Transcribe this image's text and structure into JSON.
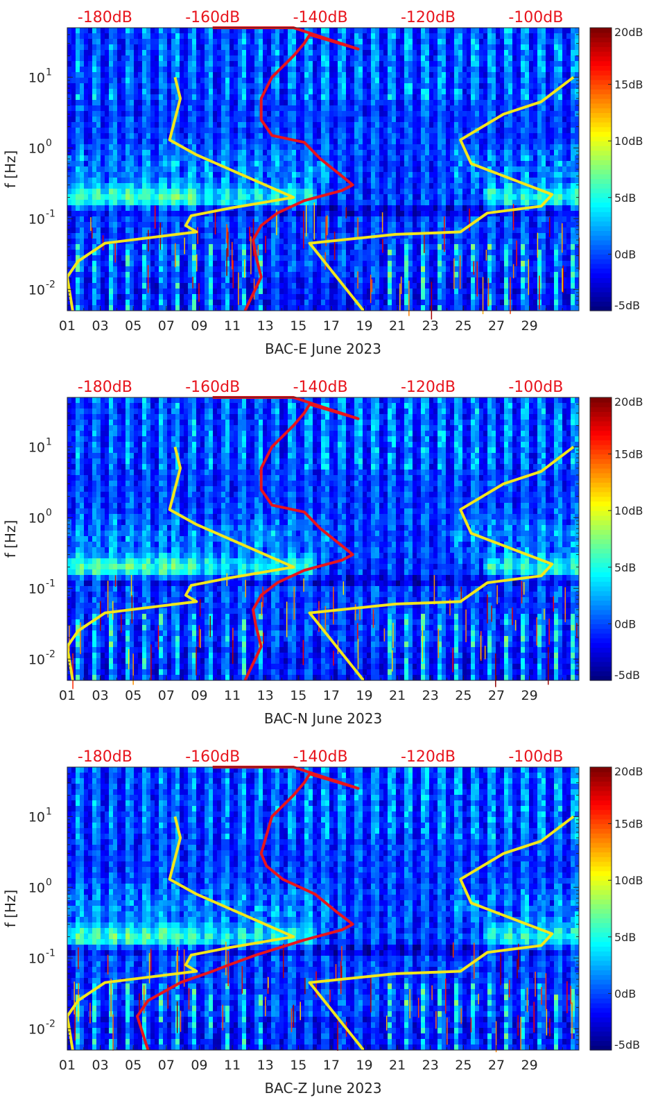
{
  "figure": {
    "colors": {
      "psd_curve": "#e8141c",
      "noise_model": "#f2e61c",
      "top_axis_text": "#e8141c"
    },
    "colormap": "jet"
  },
  "chart_data": [
    {
      "type": "heatmap",
      "title": "",
      "xlabel": "BAC-E June 2023",
      "ylabel": "f [Hz]",
      "yscale": "log",
      "ylim": [
        0.005,
        50
      ],
      "xlim": [
        1,
        32
      ],
      "x_ticks": [
        "01",
        "03",
        "05",
        "07",
        "09",
        "11",
        "13",
        "15",
        "17",
        "19",
        "21",
        "23",
        "25",
        "27",
        "29"
      ],
      "y_ticks": [
        {
          "base": "10",
          "exp": "-2",
          "value": 0.01
        },
        {
          "base": "10",
          "exp": "-1",
          "value": 0.1
        },
        {
          "base": "10",
          "exp": "0",
          "value": 1
        },
        {
          "base": "10",
          "exp": "1",
          "value": 10
        }
      ],
      "top_axis_ticks": [
        "-180dB",
        "-160dB",
        "-140dB",
        "-120dB",
        "-100dB"
      ],
      "top_axis_range": [
        -187,
        -92
      ],
      "colorbar": {
        "ticks": [
          "-5dB",
          "0dB",
          "5dB",
          "10dB",
          "15dB",
          "20dB"
        ],
        "range": [
          -5,
          20
        ]
      },
      "series": [
        {
          "points": [
            [
              -154,
              0.005
            ],
            [
              -151,
              0.015
            ],
            [
              -152,
              0.03
            ],
            [
              -152.5,
              0.05
            ],
            [
              -151,
              0.08
            ],
            [
              -148,
              0.12
            ],
            [
              -143,
              0.18
            ],
            [
              -136,
              0.25
            ],
            [
              -134,
              0.3
            ],
            [
              -136,
              0.4
            ],
            [
              -140,
              0.7
            ],
            [
              -143,
              1.2
            ],
            [
              -149,
              1.5
            ],
            [
              -151,
              2.5
            ],
            [
              -151,
              5
            ],
            [
              -149,
              10
            ],
            [
              -145,
              20
            ],
            [
              -143,
              30
            ],
            [
              -142,
              40
            ],
            [
              -133,
              25
            ],
            [
              -145,
              50
            ],
            [
              -160,
              50
            ]
          ]
        },
        {
          "points": [
            [
              -186,
              0.005
            ],
            [
              -187,
              0.015
            ],
            [
              -185,
              0.025
            ],
            [
              -180,
              0.045
            ],
            [
              -163,
              0.065
            ],
            [
              -165,
              0.08
            ],
            [
              -164,
              0.11
            ],
            [
              -157,
              0.14
            ],
            [
              -145,
              0.2
            ],
            [
              -163,
              0.8
            ],
            [
              -168,
              1.3
            ],
            [
              -166,
              5
            ],
            [
              -167,
              10
            ]
          ]
        },
        {
          "points": [
            [
              -132,
              0.005
            ],
            [
              -142,
              0.045
            ],
            [
              -126,
              0.06
            ],
            [
              -114,
              0.065
            ],
            [
              -109,
              0.12
            ],
            [
              -99,
              0.15
            ],
            [
              -97,
              0.22
            ],
            [
              -112,
              0.6
            ],
            [
              -114,
              1.3
            ],
            [
              -106,
              3
            ],
            [
              -99,
              4.5
            ],
            [
              -93,
              10
            ]
          ]
        }
      ]
    },
    {
      "type": "heatmap",
      "title": "",
      "xlabel": "BAC-N June 2023",
      "ylabel": "f [Hz]",
      "yscale": "log",
      "ylim": [
        0.005,
        50
      ],
      "xlim": [
        1,
        32
      ],
      "x_ticks": [
        "01",
        "03",
        "05",
        "07",
        "09",
        "11",
        "13",
        "15",
        "17",
        "19",
        "21",
        "23",
        "25",
        "27",
        "29"
      ],
      "y_ticks": [
        {
          "base": "10",
          "exp": "-2",
          "value": 0.01
        },
        {
          "base": "10",
          "exp": "-1",
          "value": 0.1
        },
        {
          "base": "10",
          "exp": "0",
          "value": 1
        },
        {
          "base": "10",
          "exp": "1",
          "value": 10
        }
      ],
      "top_axis_ticks": [
        "-180dB",
        "-160dB",
        "-140dB",
        "-120dB",
        "-100dB"
      ],
      "top_axis_range": [
        -187,
        -92
      ],
      "colorbar": {
        "ticks": [
          "-5dB",
          "0dB",
          "5dB",
          "10dB",
          "15dB",
          "20dB"
        ],
        "range": [
          -5,
          20
        ]
      },
      "series": [
        {
          "points": [
            [
              -154,
              0.005
            ],
            [
              -151,
              0.015
            ],
            [
              -152,
              0.03
            ],
            [
              -152.5,
              0.05
            ],
            [
              -151,
              0.08
            ],
            [
              -148,
              0.12
            ],
            [
              -143,
              0.18
            ],
            [
              -136,
              0.25
            ],
            [
              -134,
              0.3
            ],
            [
              -136,
              0.4
            ],
            [
              -140,
              0.7
            ],
            [
              -143,
              1.2
            ],
            [
              -149,
              1.5
            ],
            [
              -151,
              2.5
            ],
            [
              -151,
              5
            ],
            [
              -149,
              10
            ],
            [
              -145,
              20
            ],
            [
              -143,
              30
            ],
            [
              -142,
              40
            ],
            [
              -133,
              25
            ],
            [
              -145,
              50
            ],
            [
              -160,
              50
            ]
          ]
        },
        {
          "points": [
            [
              -186,
              0.005
            ],
            [
              -187,
              0.015
            ],
            [
              -185,
              0.025
            ],
            [
              -180,
              0.045
            ],
            [
              -163,
              0.065
            ],
            [
              -165,
              0.08
            ],
            [
              -164,
              0.11
            ],
            [
              -157,
              0.14
            ],
            [
              -145,
              0.2
            ],
            [
              -163,
              0.8
            ],
            [
              -168,
              1.3
            ],
            [
              -166,
              5
            ],
            [
              -167,
              10
            ]
          ]
        },
        {
          "points": [
            [
              -132,
              0.005
            ],
            [
              -142,
              0.045
            ],
            [
              -126,
              0.06
            ],
            [
              -114,
              0.065
            ],
            [
              -109,
              0.12
            ],
            [
              -99,
              0.15
            ],
            [
              -97,
              0.22
            ],
            [
              -112,
              0.6
            ],
            [
              -114,
              1.3
            ],
            [
              -106,
              3
            ],
            [
              -99,
              4.5
            ],
            [
              -93,
              10
            ]
          ]
        }
      ]
    },
    {
      "type": "heatmap",
      "title": "",
      "xlabel": "BAC-Z June 2023",
      "ylabel": "f [Hz]",
      "yscale": "log",
      "ylim": [
        0.005,
        50
      ],
      "xlim": [
        1,
        32
      ],
      "x_ticks": [
        "01",
        "03",
        "05",
        "07",
        "09",
        "11",
        "13",
        "15",
        "17",
        "19",
        "21",
        "23",
        "25",
        "27",
        "29"
      ],
      "y_ticks": [
        {
          "base": "10",
          "exp": "-2",
          "value": 0.01
        },
        {
          "base": "10",
          "exp": "-1",
          "value": 0.1
        },
        {
          "base": "10",
          "exp": "0",
          "value": 1
        },
        {
          "base": "10",
          "exp": "1",
          "value": 10
        }
      ],
      "top_axis_ticks": [
        "-180dB",
        "-160dB",
        "-140dB",
        "-120dB",
        "-100dB"
      ],
      "top_axis_range": [
        -187,
        -92
      ],
      "colorbar": {
        "ticks": [
          "-5dB",
          "0dB",
          "5dB",
          "10dB",
          "15dB",
          "20dB"
        ],
        "range": [
          -5,
          20
        ]
      },
      "series": [
        {
          "points": [
            [
              -172,
              0.005
            ],
            [
              -174,
              0.015
            ],
            [
              -172,
              0.025
            ],
            [
              -166,
              0.045
            ],
            [
              -160,
              0.065
            ],
            [
              -157,
              0.08
            ],
            [
              -152,
              0.11
            ],
            [
              -143,
              0.18
            ],
            [
              -136,
              0.25
            ],
            [
              -134,
              0.3
            ],
            [
              -137,
              0.45
            ],
            [
              -141,
              0.8
            ],
            [
              -147,
              1.3
            ],
            [
              -150,
              2
            ],
            [
              -151,
              3
            ],
            [
              -149,
              10
            ],
            [
              -145,
              20
            ],
            [
              -143,
              30
            ],
            [
              -142,
              40
            ],
            [
              -133,
              25
            ],
            [
              -145,
              50
            ],
            [
              -160,
              50
            ]
          ]
        },
        {
          "points": [
            [
              -186,
              0.005
            ],
            [
              -187,
              0.015
            ],
            [
              -185,
              0.025
            ],
            [
              -180,
              0.045
            ],
            [
              -163,
              0.065
            ],
            [
              -165,
              0.08
            ],
            [
              -164,
              0.11
            ],
            [
              -157,
              0.14
            ],
            [
              -145,
              0.2
            ],
            [
              -163,
              0.8
            ],
            [
              -168,
              1.3
            ],
            [
              -166,
              5
            ],
            [
              -167,
              10
            ]
          ]
        },
        {
          "points": [
            [
              -132,
              0.005
            ],
            [
              -142,
              0.045
            ],
            [
              -126,
              0.06
            ],
            [
              -114,
              0.065
            ],
            [
              -109,
              0.12
            ],
            [
              -99,
              0.15
            ],
            [
              -97,
              0.22
            ],
            [
              -112,
              0.6
            ],
            [
              -114,
              1.3
            ],
            [
              -106,
              3
            ],
            [
              -99,
              4.5
            ],
            [
              -93,
              10
            ]
          ]
        }
      ]
    }
  ]
}
